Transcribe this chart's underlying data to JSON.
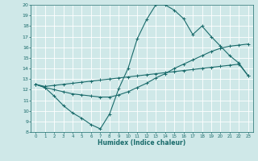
{
  "xlabel": "Humidex (Indice chaleur)",
  "ylabel": "",
  "xlim": [
    -0.5,
    23.5
  ],
  "ylim": [
    8,
    20
  ],
  "xticks": [
    0,
    1,
    2,
    3,
    4,
    5,
    6,
    7,
    8,
    9,
    10,
    11,
    12,
    13,
    14,
    15,
    16,
    17,
    18,
    19,
    20,
    21,
    22,
    23
  ],
  "yticks": [
    8,
    9,
    10,
    11,
    12,
    13,
    14,
    15,
    16,
    17,
    18,
    19,
    20
  ],
  "bg_color": "#cfe8e8",
  "grid_color": "#ffffff",
  "line_color": "#1a6b6b",
  "line1": [
    12.5,
    12.2,
    11.4,
    10.5,
    9.8,
    9.3,
    8.7,
    8.3,
    9.7,
    12.1,
    14.0,
    16.8,
    18.6,
    20.0,
    20.0,
    19.5,
    18.7,
    17.2,
    18.0,
    17.0,
    16.1,
    15.2,
    14.5,
    13.3
  ],
  "line2": [
    12.5,
    12.2,
    12.0,
    11.8,
    11.6,
    11.5,
    11.4,
    11.3,
    11.3,
    11.5,
    11.8,
    12.2,
    12.6,
    13.1,
    13.5,
    14.0,
    14.4,
    14.8,
    15.2,
    15.6,
    15.9,
    16.1,
    16.2,
    16.3
  ],
  "line3": [
    12.5,
    12.3,
    12.4,
    12.5,
    12.6,
    12.7,
    12.8,
    12.9,
    13.0,
    13.1,
    13.2,
    13.3,
    13.4,
    13.5,
    13.6,
    13.7,
    13.8,
    13.9,
    14.0,
    14.1,
    14.2,
    14.3,
    14.4,
    13.3
  ]
}
